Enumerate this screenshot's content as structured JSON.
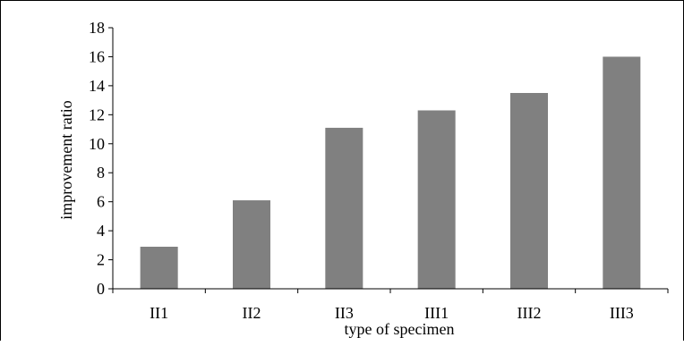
{
  "chart_data": {
    "type": "bar",
    "title": "",
    "xlabel": "type of specimen",
    "ylabel": "improvement ratio",
    "categories": [
      "II1",
      "II2",
      "II3",
      "III1",
      "III2",
      "III3"
    ],
    "values": [
      2.9,
      6.1,
      11.1,
      12.3,
      13.5,
      16.0
    ],
    "ylim": [
      0,
      18
    ],
    "yticks": [
      0,
      2,
      4,
      6,
      8,
      10,
      12,
      14,
      16,
      18
    ],
    "grid": false,
    "legend": "none",
    "bar_color": "#808080"
  }
}
